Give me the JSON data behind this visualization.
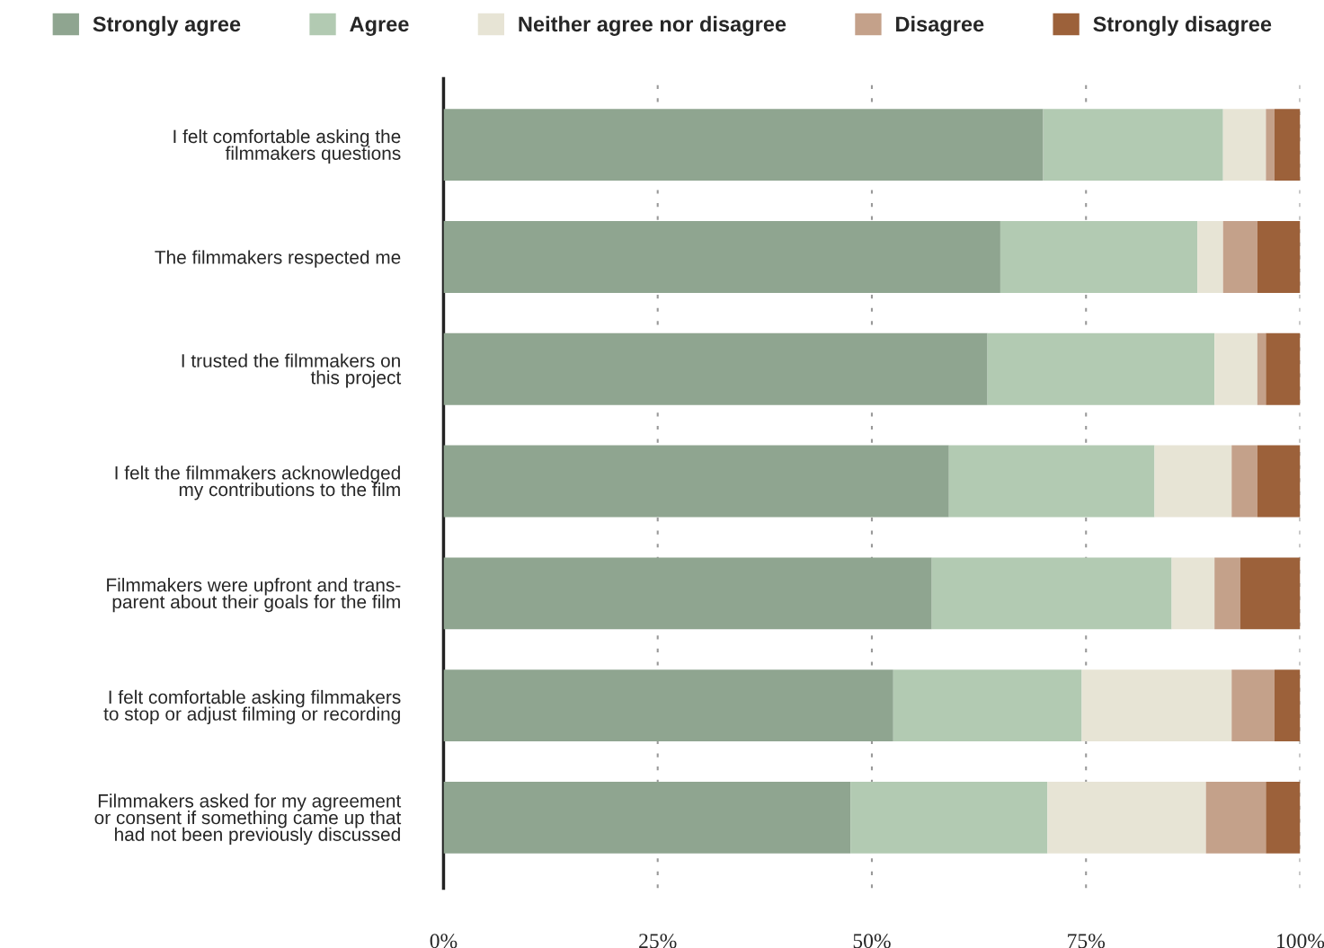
{
  "chart_data": {
    "type": "bar",
    "orientation": "horizontal",
    "stacked": true,
    "categories": [
      "I felt comfortable asking the\nfilmmakers questions",
      "The filmmakers respected me",
      "I trusted the filmmakers on\nthis project",
      "I felt the filmmakers acknowledged\nmy contributions to the film",
      "Filmmakers were upfront and trans-\nparent about their goals for the film",
      "I felt comfortable asking filmmakers\nto stop or adjust filming or recording",
      "Filmmakers asked for my agreement\nor consent if something came up that\nhad not been previously discussed"
    ],
    "series": [
      {
        "name": "Strongly agree",
        "color": "#8fa590",
        "values": [
          70,
          65,
          63.5,
          59,
          57,
          52.5,
          47.5
        ]
      },
      {
        "name": "Agree",
        "color": "#b2cab2",
        "values": [
          21,
          23,
          26.5,
          24,
          28,
          22,
          23
        ]
      },
      {
        "name": "Neither agree nor disagree",
        "color": "#e7e4d5",
        "values": [
          5,
          3,
          5,
          9,
          5,
          17.5,
          18.5
        ]
      },
      {
        "name": "Disagree",
        "color": "#c4a18a",
        "values": [
          1,
          4,
          1,
          3,
          3,
          5,
          7
        ]
      },
      {
        "name": "Strongly disagree",
        "color": "#9c613a",
        "values": [
          3,
          5,
          4,
          5,
          7,
          3,
          4
        ]
      }
    ],
    "xlim": [
      0,
      100
    ],
    "xticks": [
      {
        "value": 0,
        "label": "0%"
      },
      {
        "value": 25,
        "label": "25%"
      },
      {
        "value": 50,
        "label": "50%"
      },
      {
        "value": 75,
        "label": "75%"
      },
      {
        "value": 100,
        "label": "100%"
      }
    ],
    "grid": "x",
    "legend": "top"
  }
}
